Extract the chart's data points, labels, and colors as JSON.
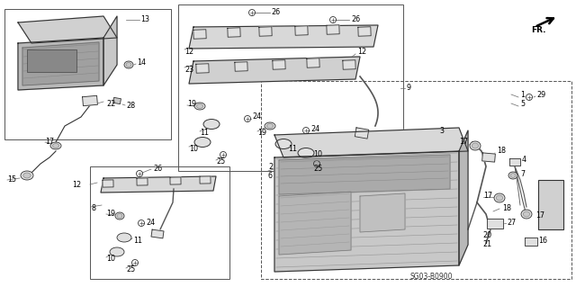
{
  "bg_color": "#ffffff",
  "line_color": "#333333",
  "fill_light": "#e0e0e0",
  "fill_mid": "#c8c8c8",
  "fill_dark": "#b0b0b0",
  "fill_hatch": "#d8d8d8",
  "diagram_code": "SG03-B0900",
  "label_fs": 5.8,
  "line_lw": 0.7,
  "part_lw": 0.8
}
